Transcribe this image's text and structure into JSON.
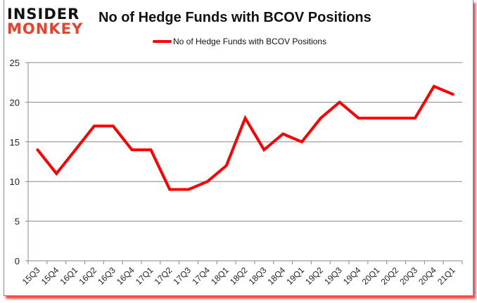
{
  "logo": {
    "line1": "INSIDER",
    "line2": "MONKEY"
  },
  "chart_data": {
    "type": "line",
    "title": "No of Hedge Funds with BCOV Positions",
    "xlabel": "",
    "ylabel": "",
    "ylim": [
      0,
      25
    ],
    "yticks": [
      0,
      5,
      10,
      15,
      20,
      25
    ],
    "grid": true,
    "legend_position": "top",
    "categories": [
      "15Q3",
      "15Q4",
      "16Q1",
      "16Q2",
      "16Q3",
      "16Q4",
      "17Q1",
      "17Q2",
      "17Q3",
      "17Q4",
      "18Q1",
      "18Q2",
      "18Q3",
      "18Q4",
      "19Q1",
      "19Q2",
      "19Q3",
      "19Q4",
      "20Q1",
      "20Q2",
      "20Q3",
      "20Q4",
      "21Q1"
    ],
    "series": [
      {
        "name": "No of Hedge Funds with BCOV Positions",
        "color": "#ff0000",
        "values": [
          14,
          11,
          14,
          17,
          17,
          14,
          14,
          9,
          9,
          10,
          12,
          18,
          14,
          16,
          15,
          18,
          20,
          18,
          18,
          18,
          18,
          22,
          21
        ]
      }
    ]
  }
}
